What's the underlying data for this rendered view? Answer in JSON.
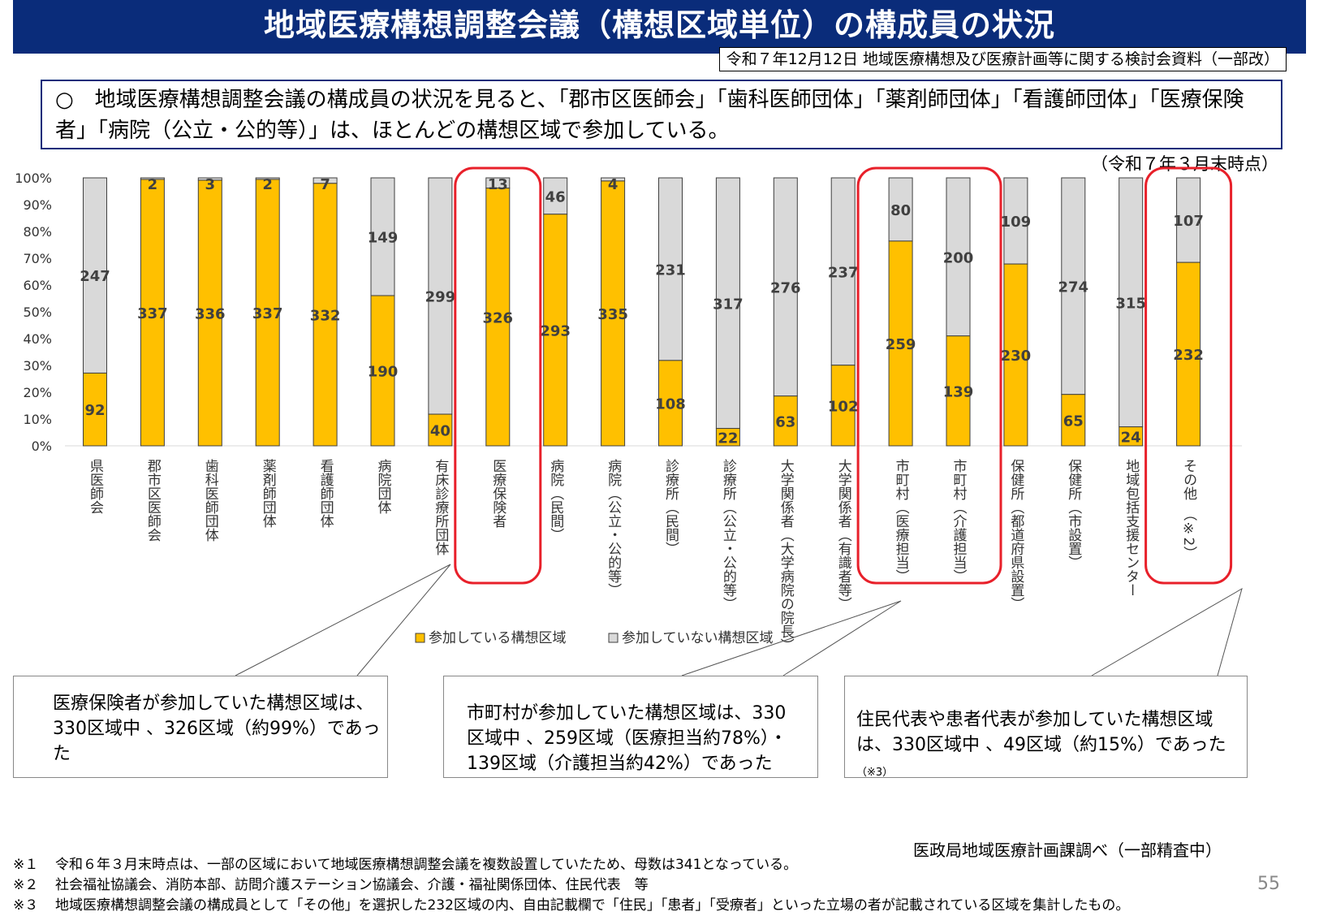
{
  "header": {
    "title": "地域医療構想調整会議（構想区域単位）の構成員の状況",
    "source_meeting": "令和７年12月12日 地域医療構想及び医療計画等に関する検討会資料（一部改）"
  },
  "summary_text": "○　地域医療構想調整会議の構成員の状況を見ると、「郡市区医師会」「歯科医師団体」「薬剤師団体」「看護師団体」「医療保険者」「病院（公立・公的等）」は、ほとんどの構想区域で参加している。",
  "as_of": "（令和７年３月末時点）",
  "chart_data": {
    "type": "bar",
    "stacked": true,
    "normalized": true,
    "categories": [
      "県医師会",
      "郡市区医師会",
      "歯科医師団体",
      "薬剤師団体",
      "看護師団体",
      "病院団体",
      "有床診療所団体",
      "医療保険者",
      "病院（民間）",
      "病院（公立・公的等）",
      "診療所（民間）",
      "診療所（公立・公的等）",
      "大学関係者（大学病院の院長）",
      "大学関係者（有識者等）",
      "市町村（医療担当）",
      "市町村（介護担当）",
      "保健所（都道府県設置）",
      "保健所（市設置）",
      "地域包括支援センター",
      "その他　（※2）"
    ],
    "series": [
      {
        "name": "参加している構想区域",
        "color": "#ffc000",
        "values": [
          92,
          337,
          336,
          337,
          332,
          190,
          40,
          326,
          293,
          335,
          108,
          22,
          63,
          102,
          259,
          139,
          230,
          65,
          24,
          232
        ]
      },
      {
        "name": "参加していない構想区域",
        "color": "#d9d9d9",
        "values": [
          247,
          2,
          3,
          2,
          7,
          149,
          299,
          13,
          46,
          4,
          231,
          317,
          276,
          237,
          80,
          200,
          109,
          274,
          315,
          107
        ]
      }
    ],
    "y_ticks": [
      "0%",
      "10%",
      "20%",
      "30%",
      "40%",
      "50%",
      "60%",
      "70%",
      "80%",
      "90%",
      "100%"
    ],
    "ylim": [
      0,
      100
    ],
    "highlighted_categories": [
      "医療保険者",
      "市町村（医療担当）",
      "市町村（介護担当）",
      "その他　（※2）"
    ],
    "legend_position": "bottom-center"
  },
  "callouts": [
    {
      "text": "医療保険者が参加していた構想区域は、330区域中 、326区域（約99%）であった",
      "note": ""
    },
    {
      "text": "市町村が参加していた構想区域は、330区域中 、259区域（医療担当約78%）・139区域（介護担当約42%）であった",
      "note": ""
    },
    {
      "text": "住民代表や患者代表が参加していた構想区域は、330区域中 、49区域（約15%）であった",
      "note": "（※3）"
    }
  ],
  "footer_source": "医政局地域医療計画課調べ（一部精査中）",
  "footnotes": [
    {
      "mark": "※１",
      "text": "令和６年３月末時点は、一部の区域において地域医療構想調整会議を複数設置していたため、母数は341となっている。"
    },
    {
      "mark": "※２",
      "text": "社会福祉協議会、消防本部、訪問介護ステーション協議会、介護・福祉関係団体、住民代表　等"
    },
    {
      "mark": "※３",
      "text": "地域医療構想調整会議の構成員として「その他」を選択した232区域の内、自由記載欄で「住民」「患者」「受療者」といった立場の者が記載されている区域を集計したもの。"
    }
  ],
  "page_number": "55"
}
